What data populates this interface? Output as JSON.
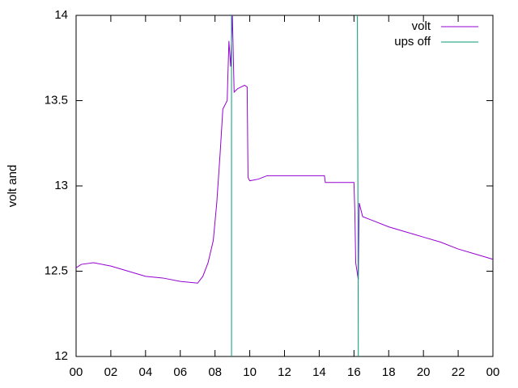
{
  "chart_data": {
    "type": "line",
    "y_label": "volt and",
    "legend": "top-right",
    "xlim": [
      0,
      24
    ],
    "xticks": [
      {
        "value": 0,
        "label": "00"
      },
      {
        "value": 2,
        "label": "02"
      },
      {
        "value": 4,
        "label": "04"
      },
      {
        "value": 6,
        "label": "06"
      },
      {
        "value": 8,
        "label": "08"
      },
      10,
      12,
      14,
      16,
      18,
      20,
      22,
      {
        "value": 24,
        "label": "00"
      }
    ],
    "ylim": [
      12,
      14
    ],
    "yticks": [
      12,
      12.5,
      13,
      13.5,
      14
    ],
    "series": [
      {
        "name": "volt",
        "color": "#9400d3",
        "x": [
          0,
          0.3,
          1,
          2,
          3,
          4,
          5,
          6,
          7,
          7.3,
          7.6,
          7.9,
          8.1,
          8.3,
          8.45,
          8.7,
          8.8,
          8.9,
          9,
          9.1,
          9.3,
          9.7,
          9.85,
          9.9,
          10,
          10.5,
          11,
          12,
          13,
          14.3,
          14.35,
          16,
          16.05,
          16.1,
          16.25,
          16.3,
          16.5,
          17,
          18,
          19,
          20,
          21,
          22,
          23,
          24
        ],
        "values": [
          12.52,
          12.54,
          12.55,
          12.53,
          12.5,
          12.47,
          12.46,
          12.44,
          12.43,
          12.47,
          12.55,
          12.68,
          12.9,
          13.2,
          13.45,
          13.5,
          13.85,
          13.7,
          14,
          13.55,
          13.57,
          13.59,
          13.58,
          13.05,
          13.03,
          13.04,
          13.06,
          13.06,
          13.06,
          13.06,
          13.02,
          13.02,
          12.85,
          12.55,
          12.45,
          12.9,
          12.82,
          12.8,
          12.76,
          12.73,
          12.7,
          12.67,
          12.63,
          12.6,
          12.57
        ]
      },
      {
        "name": "ups off",
        "color": "#009e73",
        "x": [
          8.95,
          8.95,
          8.95,
          16.2,
          16.25
        ],
        "values": [
          12,
          14,
          null,
          14,
          12
        ]
      }
    ]
  }
}
